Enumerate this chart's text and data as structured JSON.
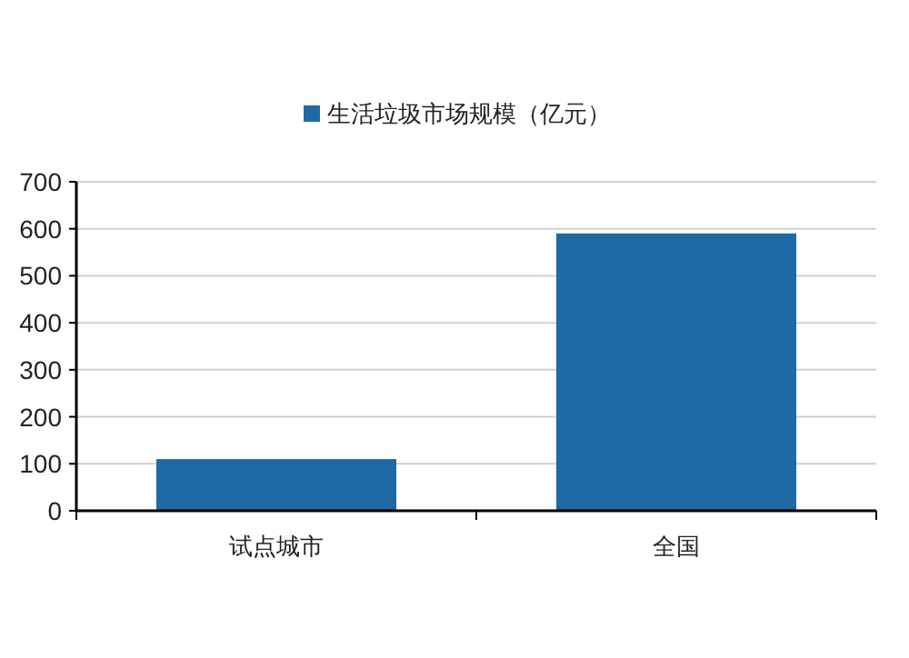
{
  "chart_data": {
    "type": "bar",
    "categories": [
      "试点城市",
      "全国"
    ],
    "series": [
      {
        "name": "生活垃圾市场规模（亿元）",
        "color": "#1f6aa5",
        "values": [
          110,
          590
        ]
      }
    ],
    "ylim": [
      0,
      700
    ],
    "yticks": [
      0,
      100,
      200,
      300,
      400,
      500,
      600,
      700
    ],
    "grid": "y",
    "legend": "top"
  }
}
